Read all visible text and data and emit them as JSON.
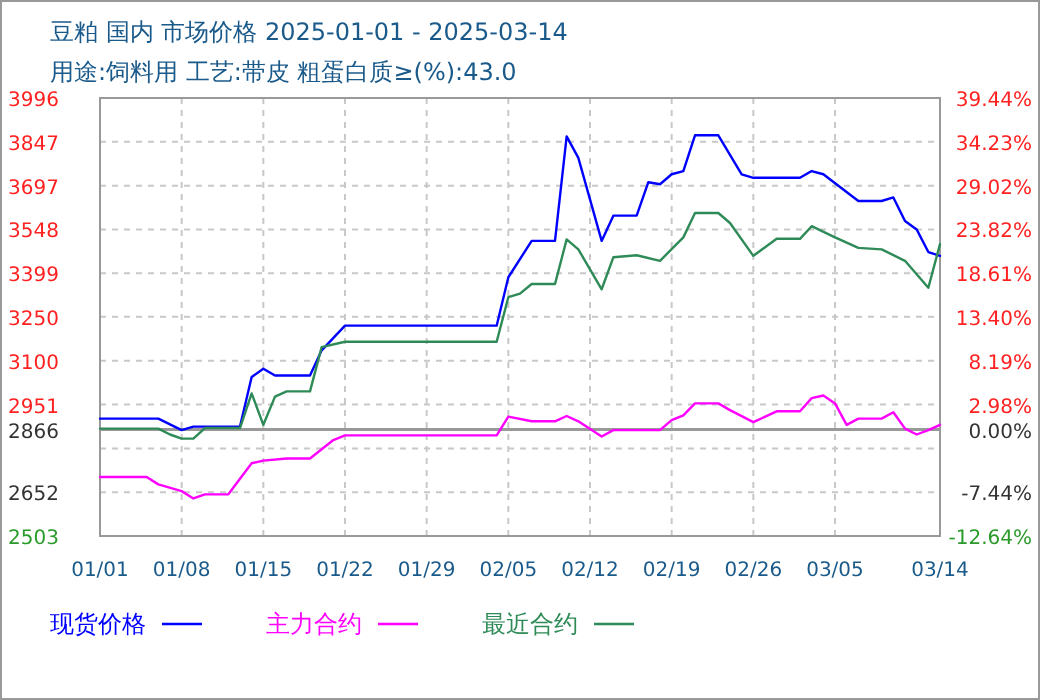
{
  "chart_data": {
    "type": "line",
    "title": "豆粕 国内 市场价格 2025-01-01 - 2025-03-14",
    "subtitle": "用途:饲料用 工艺:带皮 粗蛋白质≥(%):43.0",
    "xlim": [
      "2025-01-01",
      "2025-03-14"
    ],
    "xticks": [
      {
        "value": "2025-01-01",
        "label": "01/01"
      },
      {
        "value": "2025-01-08",
        "label": "01/08"
      },
      {
        "value": "2025-01-15",
        "label": "01/15"
      },
      {
        "value": "2025-01-22",
        "label": "01/22"
      },
      {
        "value": "2025-01-29",
        "label": "01/29"
      },
      {
        "value": "2025-02-05",
        "label": "02/05"
      },
      {
        "value": "2025-02-12",
        "label": "02/12"
      },
      {
        "value": "2025-02-19",
        "label": "02/19"
      },
      {
        "value": "2025-02-26",
        "label": "02/26"
      },
      {
        "value": "2025-03-05",
        "label": "03/05"
      },
      {
        "value": "2025-03-14",
        "label": "03/14"
      }
    ],
    "ylim": [
      2503,
      3996
    ],
    "yticks": [
      2503,
      2652,
      {
        "value": 2801,
        "label": null
      },
      2866,
      2951,
      3100,
      3250,
      3399,
      3548,
      3697,
      3847,
      3996
    ],
    "y2lim": [
      -12.64,
      39.44
    ],
    "y2ticks": [
      {
        "value": -12.64,
        "label": "-12.64%"
      },
      {
        "value": -7.44,
        "label": "-7.44%"
      },
      {
        "value": 0,
        "label": "0.00%"
      },
      {
        "value": 2.98,
        "label": "2.98%"
      },
      {
        "value": 8.19,
        "label": "8.19%"
      },
      {
        "value": 13.4,
        "label": "13.40%"
      },
      {
        "value": 18.61,
        "label": "18.61%"
      },
      {
        "value": 23.82,
        "label": "23.82%"
      },
      {
        "value": 29.02,
        "label": "29.02%"
      },
      {
        "value": 34.23,
        "label": "34.23%"
      },
      {
        "value": 39.44,
        "label": "39.44%"
      }
    ],
    "ref_lines": [
      {
        "axis": "y",
        "value": 2866,
        "color": "#999999"
      }
    ],
    "grid": true,
    "legend": "bottom",
    "line_style": "solid",
    "marker": "none",
    "series": [
      {
        "name": "现货价格",
        "color": "#0000ff",
        "x": [
          "2025-01-01",
          "2025-01-06",
          "2025-01-08",
          "2025-01-09",
          "2025-01-13",
          "2025-01-14",
          "2025-01-15",
          "2025-01-16",
          "2025-01-19",
          "2025-01-20",
          "2025-01-22",
          "2025-02-04",
          "2025-02-05",
          "2025-02-07",
          "2025-02-09",
          "2025-02-10",
          "2025-02-11",
          "2025-02-13",
          "2025-02-14",
          "2025-02-16",
          "2025-02-17",
          "2025-02-18",
          "2025-02-19",
          "2025-02-20",
          "2025-02-21",
          "2025-02-23",
          "2025-02-25",
          "2025-02-26",
          "2025-03-02",
          "2025-03-03",
          "2025-03-04",
          "2025-03-07",
          "2025-03-09",
          "2025-03-10",
          "2025-03-11",
          "2025-03-12",
          "2025-03-13",
          "2025-03-14"
        ],
        "values": [
          2903,
          2903,
          2864,
          2876,
          2876,
          3045,
          3073,
          3050,
          3050,
          3136,
          3220,
          3220,
          3385,
          3509,
          3509,
          3865,
          3792,
          3509,
          3595,
          3595,
          3709,
          3702,
          3736,
          3747,
          3869,
          3869,
          3736,
          3724,
          3724,
          3747,
          3736,
          3645,
          3645,
          3657,
          3577,
          3548,
          3471,
          3458
        ]
      },
      {
        "name": "主力合约",
        "color": "#ff00ff",
        "x": [
          "2025-01-01",
          "2025-01-05",
          "2025-01-06",
          "2025-01-08",
          "2025-01-09",
          "2025-01-10",
          "2025-01-12",
          "2025-01-14",
          "2025-01-15",
          "2025-01-17",
          "2025-01-19",
          "2025-01-21",
          "2025-01-22",
          "2025-02-04",
          "2025-02-05",
          "2025-02-07",
          "2025-02-09",
          "2025-02-10",
          "2025-02-11",
          "2025-02-13",
          "2025-02-14",
          "2025-02-18",
          "2025-02-19",
          "2025-02-20",
          "2025-02-21",
          "2025-02-23",
          "2025-02-24",
          "2025-02-26",
          "2025-02-28",
          "2025-03-02",
          "2025-03-03",
          "2025-03-04",
          "2025-03-05",
          "2025-03-06",
          "2025-03-07",
          "2025-03-09",
          "2025-03-10",
          "2025-03-11",
          "2025-03-12",
          "2025-03-13",
          "2025-03-14"
        ],
        "values": [
          2704,
          2704,
          2679,
          2656,
          2631,
          2645,
          2645,
          2751,
          2760,
          2767,
          2767,
          2830,
          2846,
          2846,
          2910,
          2894,
          2894,
          2912,
          2894,
          2842,
          2864,
          2864,
          2898,
          2914,
          2955,
          2955,
          2932,
          2891,
          2928,
          2928,
          2973,
          2982,
          2955,
          2882,
          2903,
          2903,
          2925,
          2869,
          2849,
          2864,
          2882
        ]
      },
      {
        "name": "最近合约",
        "color": "#2e8b57",
        "x": [
          "2025-01-01",
          "2025-01-06",
          "2025-01-07",
          "2025-01-08",
          "2025-01-09",
          "2025-01-10",
          "2025-01-13",
          "2025-01-14",
          "2025-01-15",
          "2025-01-16",
          "2025-01-17",
          "2025-01-19",
          "2025-01-20",
          "2025-01-22",
          "2025-02-04",
          "2025-02-05",
          "2025-02-06",
          "2025-02-07",
          "2025-02-09",
          "2025-02-10",
          "2025-02-11",
          "2025-02-13",
          "2025-02-14",
          "2025-02-16",
          "2025-02-18",
          "2025-02-20",
          "2025-02-21",
          "2025-02-23",
          "2025-02-24",
          "2025-02-26",
          "2025-02-28",
          "2025-03-02",
          "2025-03-03",
          "2025-03-05",
          "2025-03-07",
          "2025-03-09",
          "2025-03-11",
          "2025-03-13",
          "2025-03-14"
        ],
        "values": [
          2869,
          2869,
          2849,
          2835,
          2835,
          2871,
          2871,
          2989,
          2882,
          2978,
          2996,
          2996,
          3147,
          3165,
          3165,
          3317,
          3329,
          3362,
          3362,
          3514,
          3480,
          3344,
          3453,
          3460,
          3441,
          3521,
          3604,
          3604,
          3570,
          3458,
          3516,
          3516,
          3559,
          3521,
          3485,
          3480,
          3441,
          3349,
          3498
        ]
      }
    ]
  }
}
